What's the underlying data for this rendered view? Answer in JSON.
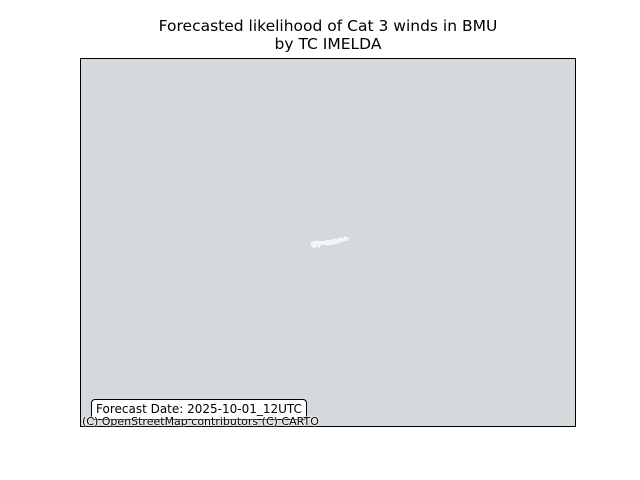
{
  "figure": {
    "title_line1": "Forecasted likelihood of Cat 3 winds in BMU",
    "title_line2": "by TC IMELDA"
  },
  "map": {
    "basemap_color": "#d4dadc",
    "land_color": "#f2f2f2",
    "feature_icon": "bermuda-island-icon",
    "forecast_label": "Forecast Date: 2025-10-01_12UTC",
    "attribution": "(C) OpenStreetMap contributors (C) CARTO"
  }
}
